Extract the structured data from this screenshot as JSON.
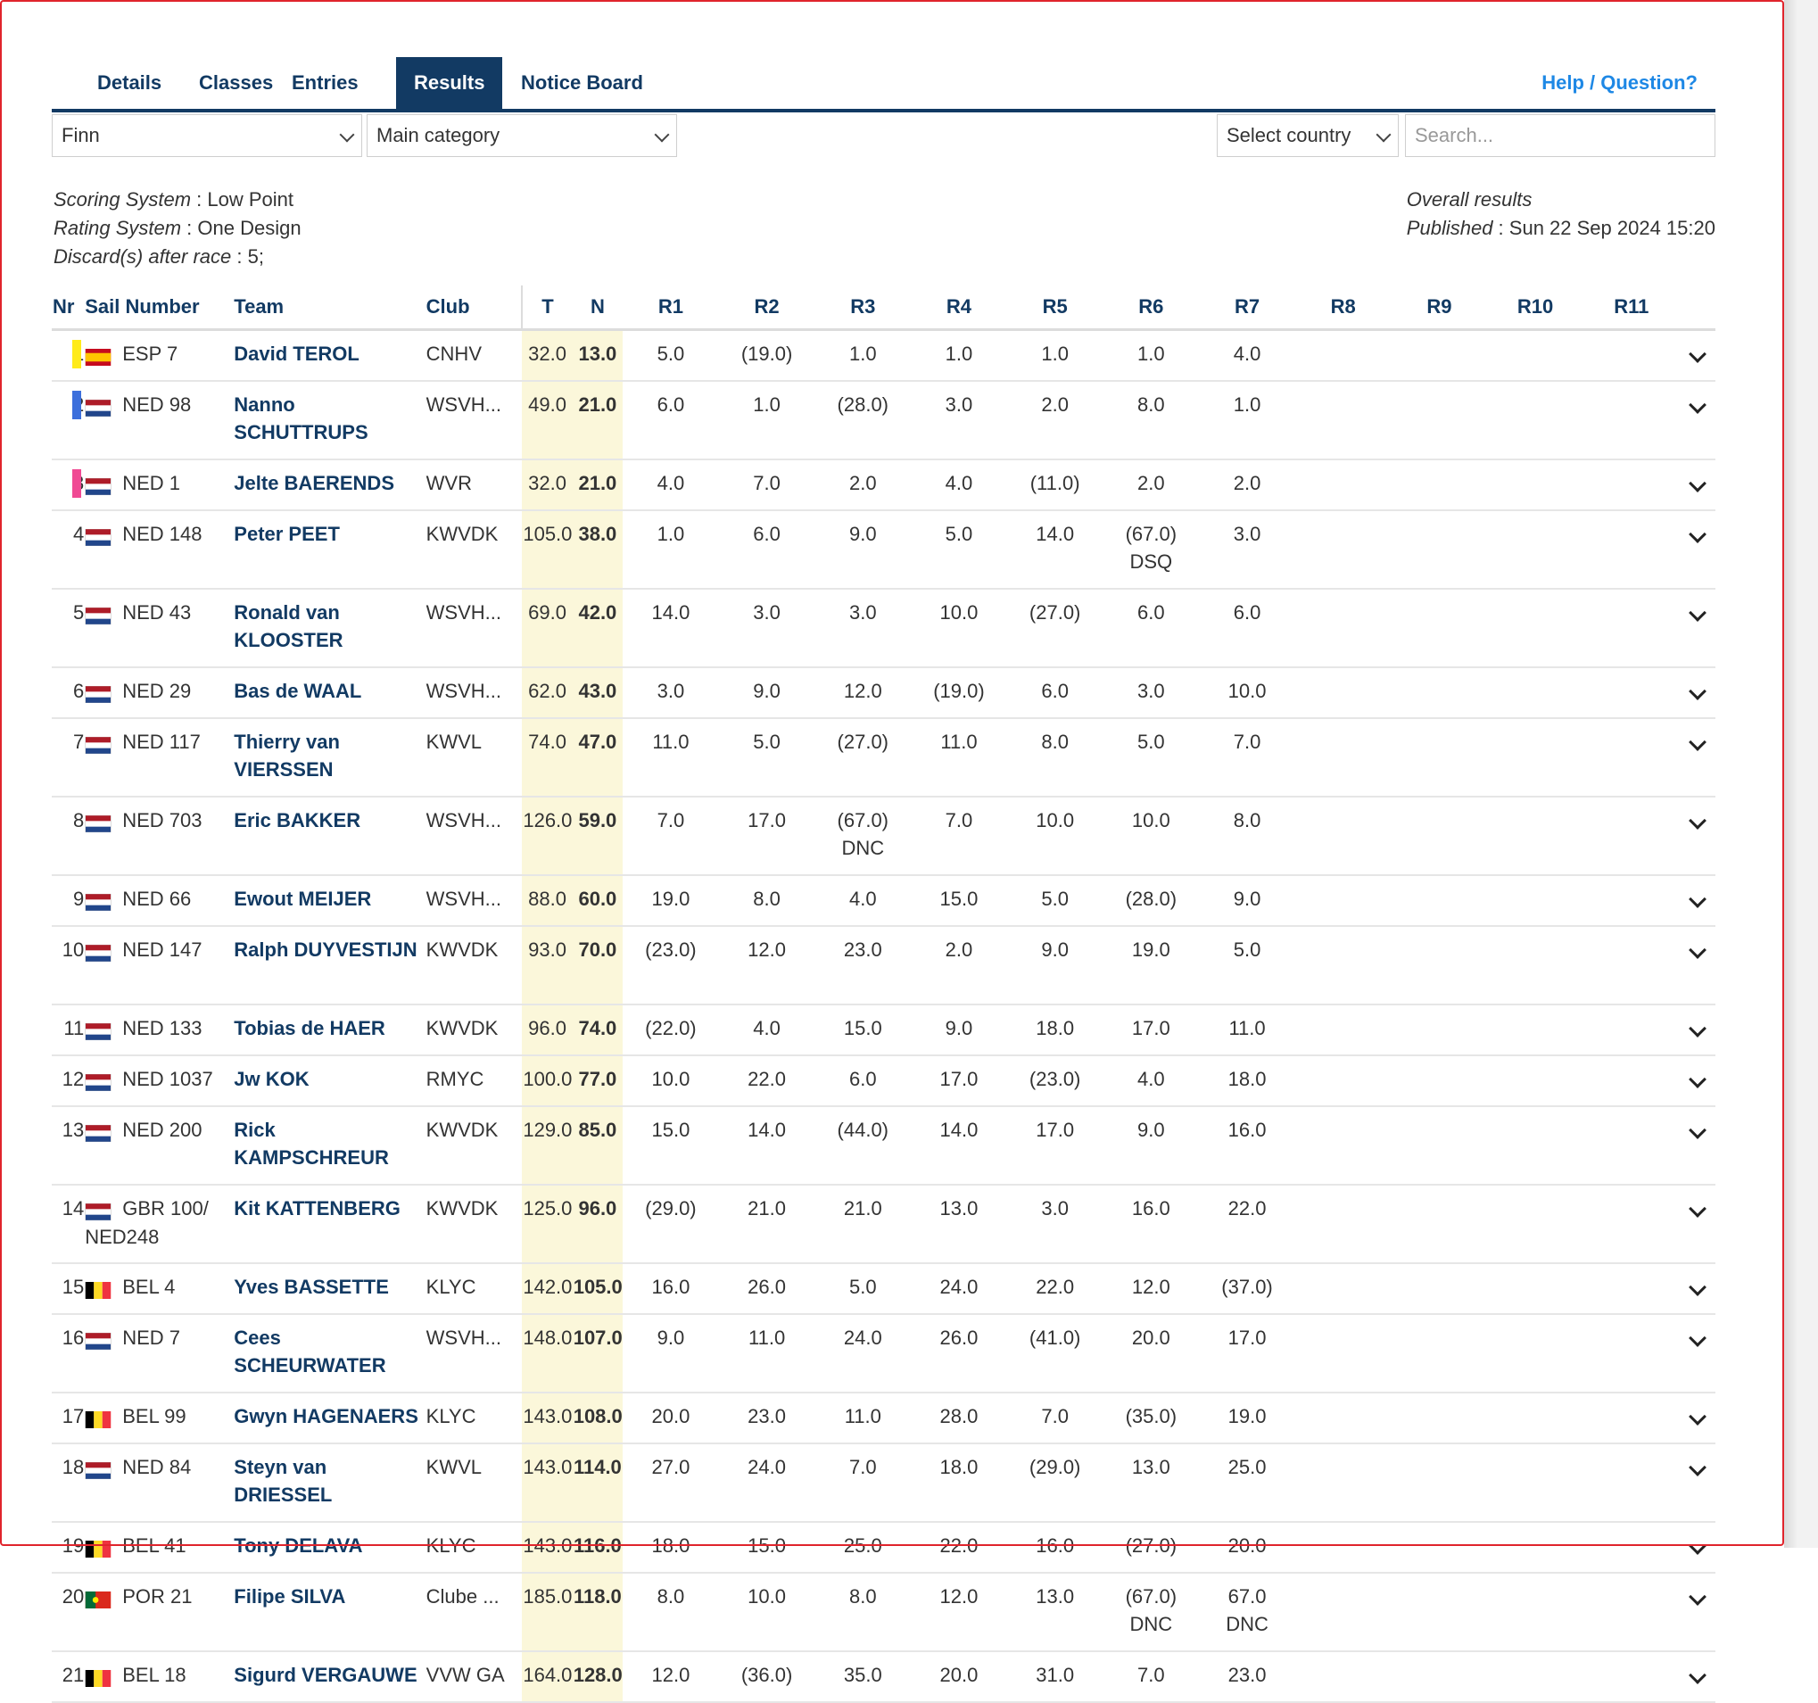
{
  "tabs": [
    {
      "label": "Details"
    },
    {
      "label": "Classes"
    },
    {
      "label": "Entries"
    },
    {
      "label": "Results"
    },
    {
      "label": "Notice Board"
    }
  ],
  "help_link": "Help / Question?",
  "filters": {
    "class_select": "Finn",
    "category_select": "Main category",
    "country_select": "Select country",
    "search_placeholder": "Search..."
  },
  "info": {
    "scoring_label": "Scoring System",
    "scoring_value": "Low Point",
    "rating_label": "Rating System",
    "rating_value": "One Design",
    "discard_label": "Discard(s) after race",
    "discard_value": "5;",
    "overall": "Overall results",
    "published_label": "Published",
    "published_value": "Sun 22 Sep 2024 15:20"
  },
  "columns": [
    "Nr",
    "Sail Number",
    "Team",
    "Club",
    "T",
    "N",
    "R1",
    "R2",
    "R3",
    "R4",
    "R5",
    "R6",
    "R7",
    "R8",
    "R9",
    "R10",
    "R11"
  ],
  "colors": {
    "flag_esp": "#c60b1e",
    "flag_ned": "#21468b",
    "flag_bel": "#fdda24",
    "flag_por": "#046a38",
    "gold": "#ffeb1a",
    "silver": "#3c6fdc",
    "bronze": "#f04a94"
  },
  "rows": [
    {
      "nr": "1",
      "mark": "gold",
      "flag": "esp",
      "sail": "ESP 7",
      "team": "David TEROL",
      "club": "CNHV",
      "t": "32.0",
      "n": "13.0",
      "r": [
        "5.0",
        "(19.0)",
        "1.0",
        "1.0",
        "1.0",
        "1.0",
        "4.0"
      ],
      "sub": [
        "",
        "",
        "",
        "",
        "",
        "",
        ""
      ]
    },
    {
      "nr": "2",
      "mark": "silver",
      "flag": "ned",
      "sail": "NED 98",
      "team": "Nanno SCHUTTRUPS",
      "club": "WSVH...",
      "t": "49.0",
      "n": "21.0",
      "r": [
        "6.0",
        "1.0",
        "(28.0)",
        "3.0",
        "2.0",
        "8.0",
        "1.0"
      ],
      "sub": [
        "",
        "",
        "",
        "",
        "",
        "",
        ""
      ]
    },
    {
      "nr": "3",
      "mark": "bronze",
      "flag": "ned",
      "sail": "NED 1",
      "team": "Jelte BAERENDS",
      "club": "WVR",
      "t": "32.0",
      "n": "21.0",
      "r": [
        "4.0",
        "7.0",
        "2.0",
        "4.0",
        "(11.0)",
        "2.0",
        "2.0"
      ],
      "sub": [
        "",
        "",
        "",
        "",
        "",
        "",
        ""
      ]
    },
    {
      "nr": "4",
      "mark": "",
      "flag": "ned",
      "sail": "NED 148",
      "team": "Peter PEET",
      "club": "KWVDK",
      "t": "105.0",
      "n": "38.0",
      "r": [
        "1.0",
        "6.0",
        "9.0",
        "5.0",
        "14.0",
        "(67.0)",
        "3.0"
      ],
      "sub": [
        "",
        "",
        "",
        "",
        "",
        "DSQ",
        ""
      ]
    },
    {
      "nr": "5",
      "mark": "",
      "flag": "ned",
      "sail": "NED 43",
      "team": "Ronald van KLOOSTER",
      "club": "WSVH...",
      "t": "69.0",
      "n": "42.0",
      "r": [
        "14.0",
        "3.0",
        "3.0",
        "10.0",
        "(27.0)",
        "6.0",
        "6.0"
      ],
      "sub": [
        "",
        "",
        "",
        "",
        "",
        "",
        ""
      ]
    },
    {
      "nr": "6",
      "mark": "",
      "flag": "ned",
      "sail": "NED 29",
      "team": "Bas de WAAL",
      "club": "WSVH...",
      "t": "62.0",
      "n": "43.0",
      "r": [
        "3.0",
        "9.0",
        "12.0",
        "(19.0)",
        "6.0",
        "3.0",
        "10.0"
      ],
      "sub": [
        "",
        "",
        "",
        "",
        "",
        "",
        ""
      ]
    },
    {
      "nr": "7",
      "mark": "",
      "flag": "ned",
      "sail": "NED 117",
      "team": "Thierry van VIERSSEN",
      "club": "KWVL",
      "t": "74.0",
      "n": "47.0",
      "r": [
        "11.0",
        "5.0",
        "(27.0)",
        "11.0",
        "8.0",
        "5.0",
        "7.0"
      ],
      "sub": [
        "",
        "",
        "",
        "",
        "",
        "",
        ""
      ]
    },
    {
      "nr": "8",
      "mark": "",
      "flag": "ned",
      "sail": "NED 703",
      "team": "Eric BAKKER",
      "club": "WSVH...",
      "t": "126.0",
      "n": "59.0",
      "r": [
        "7.0",
        "17.0",
        "(67.0)",
        "7.0",
        "10.0",
        "10.0",
        "8.0"
      ],
      "sub": [
        "",
        "",
        "DNC",
        "",
        "",
        "",
        ""
      ]
    },
    {
      "nr": "9",
      "mark": "",
      "flag": "ned",
      "sail": "NED 66",
      "team": "Ewout MEIJER",
      "club": "WSVH...",
      "t": "88.0",
      "n": "60.0",
      "r": [
        "19.0",
        "8.0",
        "4.0",
        "15.0",
        "5.0",
        "(28.0)",
        "9.0"
      ],
      "sub": [
        "",
        "",
        "",
        "",
        "",
        "",
        ""
      ]
    },
    {
      "nr": "10",
      "mark": "",
      "flag": "ned",
      "sail": "NED 147",
      "team": "Ralph DUYVESTIJN",
      "club": "KWVDK",
      "t": "93.0",
      "n": "70.0",
      "r": [
        "(23.0)",
        "12.0",
        "23.0",
        "2.0",
        "9.0",
        "19.0",
        "5.0"
      ],
      "sub": [
        "",
        "",
        "",
        "",
        "",
        "",
        ""
      ]
    },
    {
      "nr": "11",
      "mark": "",
      "flag": "ned",
      "sail": "NED 133",
      "team": "Tobias de HAER",
      "club": "KWVDK",
      "t": "96.0",
      "n": "74.0",
      "r": [
        "(22.0)",
        "4.0",
        "15.0",
        "9.0",
        "18.0",
        "17.0",
        "11.0"
      ],
      "sub": [
        "",
        "",
        "",
        "",
        "",
        "",
        ""
      ]
    },
    {
      "nr": "12",
      "mark": "",
      "flag": "ned",
      "sail": "NED 1037",
      "team": "Jw KOK",
      "club": "RMYC",
      "t": "100.0",
      "n": "77.0",
      "r": [
        "10.0",
        "22.0",
        "6.0",
        "17.0",
        "(23.0)",
        "4.0",
        "18.0"
      ],
      "sub": [
        "",
        "",
        "",
        "",
        "",
        "",
        ""
      ]
    },
    {
      "nr": "13",
      "mark": "",
      "flag": "ned",
      "sail": "NED 200",
      "team": "Rick KAMPSCHREUR",
      "club": "KWVDK",
      "t": "129.0",
      "n": "85.0",
      "r": [
        "15.0",
        "14.0",
        "(44.0)",
        "14.0",
        "17.0",
        "9.0",
        "16.0"
      ],
      "sub": [
        "",
        "",
        "",
        "",
        "",
        "",
        ""
      ]
    },
    {
      "nr": "14",
      "mark": "",
      "flag": "ned",
      "sail": "GBR 100/ NED248",
      "team": "Kit KATTENBERG",
      "club": "KWVDK",
      "t": "125.0",
      "n": "96.0",
      "r": [
        "(29.0)",
        "21.0",
        "21.0",
        "13.0",
        "3.0",
        "16.0",
        "22.0"
      ],
      "sub": [
        "",
        "",
        "",
        "",
        "",
        "",
        ""
      ]
    },
    {
      "nr": "15",
      "mark": "",
      "flag": "bel",
      "sail": "BEL 4",
      "team": "Yves BASSETTE",
      "club": "KLYC",
      "t": "142.0",
      "n": "105.0",
      "r": [
        "16.0",
        "26.0",
        "5.0",
        "24.0",
        "22.0",
        "12.0",
        "(37.0)"
      ],
      "sub": [
        "",
        "",
        "",
        "",
        "",
        "",
        ""
      ]
    },
    {
      "nr": "16",
      "mark": "",
      "flag": "ned",
      "sail": "NED 7",
      "team": "Cees SCHEURWATER",
      "club": "WSVH...",
      "t": "148.0",
      "n": "107.0",
      "r": [
        "9.0",
        "11.0",
        "24.0",
        "26.0",
        "(41.0)",
        "20.0",
        "17.0"
      ],
      "sub": [
        "",
        "",
        "",
        "",
        "",
        "",
        ""
      ]
    },
    {
      "nr": "17",
      "mark": "",
      "flag": "bel",
      "sail": "BEL 99",
      "team": "Gwyn HAGENAERS",
      "club": "KLYC",
      "t": "143.0",
      "n": "108.0",
      "r": [
        "20.0",
        "23.0",
        "11.0",
        "28.0",
        "7.0",
        "(35.0)",
        "19.0"
      ],
      "sub": [
        "",
        "",
        "",
        "",
        "",
        "",
        ""
      ]
    },
    {
      "nr": "18",
      "mark": "",
      "flag": "ned",
      "sail": "NED 84",
      "team": "Steyn van DRIESSEL",
      "club": "KWVL",
      "t": "143.0",
      "n": "114.0",
      "r": [
        "27.0",
        "24.0",
        "7.0",
        "18.0",
        "(29.0)",
        "13.0",
        "25.0"
      ],
      "sub": [
        "",
        "",
        "",
        "",
        "",
        "",
        ""
      ]
    },
    {
      "nr": "19",
      "mark": "",
      "flag": "bel",
      "sail": "BEL 41",
      "team": "Tony DELAVA",
      "club": "KLYC",
      "t": "143.0",
      "n": "116.0",
      "r": [
        "18.0",
        "15.0",
        "25.0",
        "22.0",
        "16.0",
        "(27.0)",
        "20.0"
      ],
      "sub": [
        "",
        "",
        "",
        "",
        "",
        "",
        ""
      ]
    },
    {
      "nr": "20",
      "mark": "",
      "flag": "por",
      "sail": "POR 21",
      "team": "Filipe SILVA",
      "club": "Clube ...",
      "t": "185.0",
      "n": "118.0",
      "r": [
        "8.0",
        "10.0",
        "8.0",
        "12.0",
        "13.0",
        "(67.0)",
        "67.0"
      ],
      "sub": [
        "",
        "",
        "",
        "",
        "",
        "DNC",
        "DNC"
      ]
    },
    {
      "nr": "21",
      "mark": "",
      "flag": "bel",
      "sail": "BEL 18",
      "team": "Sigurd VERGAUWE",
      "club": "VVW GA",
      "t": "164.0",
      "n": "128.0",
      "r": [
        "12.0",
        "(36.0)",
        "35.0",
        "20.0",
        "31.0",
        "7.0",
        "23.0"
      ],
      "sub": [
        "",
        "",
        "",
        "",
        "",
        "",
        ""
      ]
    }
  ]
}
